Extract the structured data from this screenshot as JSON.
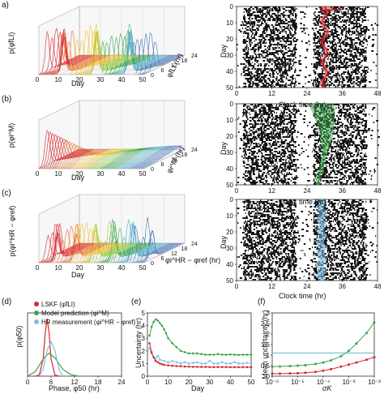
{
  "panel_letters": [
    "a)",
    "(b)",
    "(c)",
    "(d)",
    "(e)",
    "(f)"
  ],
  "panel_a": {
    "zlabel": "p(φ̃ILI)",
    "xlabel": "Day",
    "ylabel": "φ̃ILI (hr)",
    "x_ticks": [
      "0",
      "10",
      "20",
      "30",
      "40",
      "50"
    ],
    "y_ticks": [
      "0",
      "6",
      "12",
      "18",
      "24"
    ]
  },
  "panel_b": {
    "zlabel": "p(φi^M)",
    "xlabel": "Day",
    "ylabel": "φi^M (hr)",
    "x_ticks": [
      "0",
      "10",
      "20",
      "30",
      "40",
      "50"
    ],
    "y_ticks": [
      "0",
      "6",
      "12",
      "18",
      "24"
    ]
  },
  "panel_c": {
    "zlabel": "p(φi^HR − φref)",
    "xlabel": "Day",
    "ylabel": "φi^HR − φref (hr)",
    "x_ticks": [
      "0",
      "10",
      "20",
      "30",
      "40",
      "50"
    ],
    "y_ticks": [
      "0",
      "6",
      "12",
      "18",
      "24"
    ]
  },
  "raster_axes": {
    "ylabel": "Day",
    "xlabel": "Clock time (hr)",
    "y_ticks": [
      "0",
      "10",
      "20",
      "30",
      "40",
      "50"
    ],
    "x_ticks": [
      "0",
      "12",
      "24",
      "36",
      "48"
    ]
  },
  "colors": {
    "red": "#d9262b",
    "green": "#3aa34a",
    "blue": "#7fbde6",
    "black": "#111111",
    "ref_line": "#5fb6c9"
  },
  "chart_data": [
    {
      "type": "line",
      "panel": "d",
      "xlabel": "Phase, φ50 (hr)",
      "ylabel": "p(φ50)",
      "xlim": [
        0,
        24
      ],
      "x_ticks": [
        "0",
        "6",
        "12",
        "18",
        "24"
      ],
      "legend": "top-right",
      "series": [
        {
          "name": "LSKF (φ̃ILI)",
          "color": "#d9262b",
          "x": [
            2,
            3,
            4,
            4.5,
            5,
            5.5,
            6,
            7,
            8
          ],
          "y": [
            0,
            0.02,
            0.3,
            0.75,
            1.0,
            0.75,
            0.3,
            0.02,
            0
          ]
        },
        {
          "name": "Model prediction (φi^M)",
          "color": "#3aa34a",
          "x": [
            0,
            2,
            4,
            5.5,
            7,
            9,
            11,
            13
          ],
          "y": [
            0,
            0.08,
            0.3,
            0.4,
            0.32,
            0.12,
            0.03,
            0
          ]
        },
        {
          "name": "HR measurement (φi^HR − φref)",
          "color": "#7fbde6",
          "x": [
            3,
            4,
            5,
            6,
            7,
            8,
            9
          ],
          "y": [
            0,
            0.12,
            0.45,
            0.6,
            0.45,
            0.12,
            0
          ]
        }
      ]
    },
    {
      "type": "line",
      "panel": "e",
      "xlabel": "Day",
      "ylabel": "Uncertainty (hr)",
      "xlim": [
        0,
        50
      ],
      "ylim": [
        0,
        5
      ],
      "x_ticks": [
        "0",
        "10",
        "20",
        "30",
        "40",
        "50"
      ],
      "y_ticks": [
        "0",
        "1",
        "2",
        "3",
        "4",
        "5"
      ],
      "series": [
        {
          "color": "#3aa34a",
          "x": [
            1,
            2,
            3,
            4,
            5,
            6,
            7,
            8,
            9,
            10,
            12,
            14,
            16,
            18,
            20,
            22,
            24,
            26,
            28,
            30,
            32,
            34,
            36,
            38,
            40,
            42,
            44,
            46,
            48,
            50
          ],
          "y": [
            3.2,
            3.9,
            4.3,
            4.5,
            4.4,
            4.2,
            4.0,
            3.7,
            3.4,
            3.0,
            2.6,
            2.3,
            2.0,
            1.9,
            1.8,
            1.8,
            1.8,
            1.75,
            1.7,
            1.7,
            1.7,
            1.75,
            1.7,
            1.7,
            1.72,
            1.7,
            1.68,
            1.7,
            1.7,
            1.7
          ]
        },
        {
          "color": "#7fbde6",
          "x": [
            1,
            2,
            3,
            4,
            5,
            6,
            8,
            10,
            12,
            14,
            16,
            18,
            20,
            22,
            24,
            26,
            28,
            30,
            32,
            34,
            36,
            38,
            40,
            42,
            44,
            46,
            48,
            50
          ],
          "y": [
            2.2,
            1.8,
            1.5,
            1.4,
            1.6,
            1.3,
            1.2,
            1.1,
            1.2,
            1.1,
            1.0,
            1.1,
            1.0,
            1.05,
            1.1,
            1.0,
            1.0,
            1.2,
            1.0,
            1.0,
            1.1,
            1.0,
            1.0,
            1.1,
            1.0,
            1.0,
            1.05,
            1.0
          ]
        },
        {
          "color": "#d9262b",
          "x": [
            1,
            2,
            3,
            4,
            5,
            6,
            7,
            8,
            10,
            12,
            14,
            16,
            18,
            20,
            22,
            24,
            26,
            28,
            30,
            32,
            34,
            36,
            38,
            40,
            42,
            44,
            46,
            48,
            50
          ],
          "y": [
            2.6,
            1.9,
            1.5,
            1.2,
            1.1,
            1.0,
            0.95,
            0.9,
            0.85,
            0.82,
            0.8,
            0.78,
            0.76,
            0.75,
            0.74,
            0.74,
            0.73,
            0.73,
            0.72,
            0.72,
            0.72,
            0.72,
            0.72,
            0.71,
            0.71,
            0.71,
            0.71,
            0.71,
            0.71
          ]
        }
      ]
    },
    {
      "type": "line",
      "panel": "f",
      "xlabel": "σK",
      "ylabel": "Mean uncertainty (hr)",
      "x_scale": "log",
      "xlim": [
        1e-06,
        0.01
      ],
      "ylim": [
        0,
        3
      ],
      "x_ticks": [
        "10⁻⁶",
        "10⁻⁵",
        "10⁻⁴",
        "10⁻³",
        "10⁻²"
      ],
      "y_ticks": [
        "0",
        "0.5",
        "1",
        "1.5",
        "2",
        "2.5",
        "3"
      ],
      "series": [
        {
          "color": "#3aa34a",
          "x": [
            1e-06,
            2e-06,
            5e-06,
            1e-05,
            2e-05,
            5e-05,
            0.0001,
            0.0002,
            0.0005,
            0.001,
            0.002,
            0.005,
            0.01
          ],
          "y": [
            0.45,
            0.46,
            0.48,
            0.5,
            0.52,
            0.58,
            0.65,
            0.75,
            0.95,
            1.2,
            1.55,
            2.05,
            2.55
          ]
        },
        {
          "color": "#d9262b",
          "x": [
            1e-06,
            2e-06,
            5e-06,
            1e-05,
            2e-05,
            5e-05,
            0.0001,
            0.0002,
            0.0005,
            0.001,
            0.002,
            0.005,
            0.01
          ],
          "y": [
            0.12,
            0.12,
            0.13,
            0.14,
            0.16,
            0.2,
            0.26,
            0.33,
            0.45,
            0.55,
            0.65,
            0.78,
            0.9
          ]
        },
        {
          "color": "#5fb6c9",
          "x": [
            1e-06,
            0.01
          ],
          "y": [
            1.1,
            1.1
          ]
        }
      ]
    }
  ]
}
